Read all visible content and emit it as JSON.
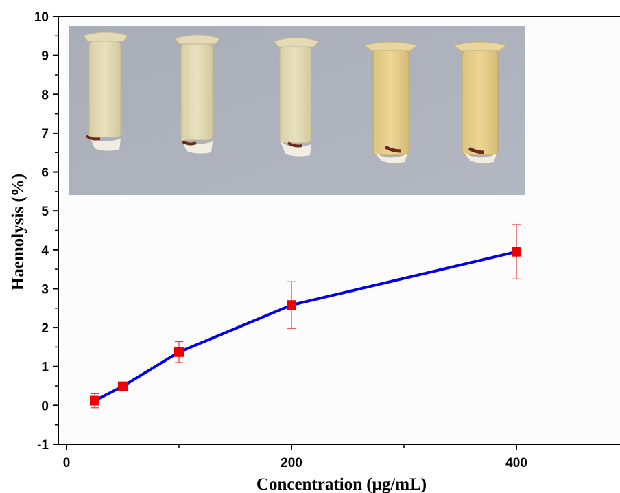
{
  "chart_data": {
    "type": "line",
    "title": "",
    "xlabel": "Concentration (μg/mL)",
    "ylabel": "Haemolysis (%)",
    "xlim": [
      -10,
      490
    ],
    "ylim": [
      -1,
      10
    ],
    "x_ticks_major": [
      0,
      200,
      400
    ],
    "x_ticks_minor": [
      100,
      300
    ],
    "y_ticks": [
      -1,
      0,
      1,
      2,
      3,
      4,
      5,
      6,
      7,
      8,
      9,
      10
    ],
    "grid": false,
    "legend": "none",
    "series": [
      {
        "x": [
          25,
          50,
          100,
          200,
          400
        ],
        "y": [
          0.12,
          0.49,
          1.37,
          2.58,
          3.95
        ],
        "error": [
          0.18,
          0.05,
          0.27,
          0.6,
          0.7
        ]
      }
    ],
    "line_color": "#0000ee",
    "marker_color": "#ee0000",
    "errorbar_color": "#ee3333",
    "inset": {
      "description": "Photograph of five microtubes with haemolysis samples",
      "tube_count": 5
    }
  }
}
